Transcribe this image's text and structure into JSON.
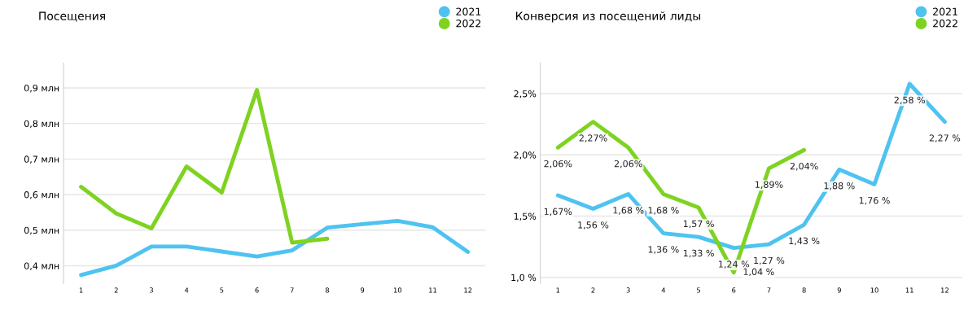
{
  "chart_data": [
    {
      "type": "line",
      "title": "Посещения",
      "categories": [
        "1",
        "2",
        "3",
        "4",
        "5",
        "6",
        "7",
        "8",
        "9",
        "10",
        "11",
        "12"
      ],
      "series": [
        {
          "name": "2021",
          "color": "#4fc3f0",
          "values": [
            0.374,
            0.4,
            0.454,
            0.454,
            0.44,
            0.426,
            0.443,
            0.507,
            0.517,
            0.526,
            0.508,
            0.439
          ]
        },
        {
          "name": "2022",
          "color": "#7ed321",
          "values": [
            0.622,
            0.547,
            0.505,
            0.679,
            0.606,
            0.894,
            0.465,
            0.476,
            null,
            null,
            null,
            null
          ]
        }
      ],
      "ylim": [
        0.35,
        0.97
      ],
      "yticks": [
        {
          "value": 0.4,
          "label": "0,4 млн"
        },
        {
          "value": 0.5,
          "label": "0,5 млн"
        },
        {
          "value": 0.6,
          "label": "0,6 млн"
        },
        {
          "value": 0.7,
          "label": "0,7 млн"
        },
        {
          "value": 0.8,
          "label": "0,8 млн"
        },
        {
          "value": 0.9,
          "label": "0,9 млн"
        }
      ],
      "grid": "y",
      "legend": "top right",
      "marker": "none"
    },
    {
      "type": "line",
      "title": "Конверсия из посещений лиды",
      "categories": [
        "1",
        "2",
        "3",
        "4",
        "5",
        "6",
        "7",
        "8",
        "9",
        "10",
        "11",
        "12"
      ],
      "series": [
        {
          "name": "2021",
          "color": "#4fc3f0",
          "values": [
            1.67,
            1.56,
            1.68,
            1.36,
            1.33,
            1.24,
            1.27,
            1.43,
            1.88,
            1.76,
            2.58,
            2.27
          ],
          "value_labels": [
            "1,67%",
            "1,56 %",
            "1,68 %",
            "1,36 %",
            "1,33 %",
            "1,24 %",
            "1,27 %",
            "1,43 %",
            "1,88 %",
            "1,76 %",
            "2,58 %",
            "2,27 %"
          ]
        },
        {
          "name": "2022",
          "color": "#7ed321",
          "values": [
            2.06,
            2.27,
            2.06,
            1.68,
            1.57,
            1.04,
            1.89,
            2.04,
            null,
            null,
            null,
            null
          ],
          "value_labels": [
            "2,06%",
            "2,27%",
            "2,06%",
            "1,68 %",
            "1,57 %",
            "1,04 %",
            "1,89%",
            "2,04%",
            null,
            null,
            null,
            null
          ]
        }
      ],
      "ylim": [
        0.95,
        2.75
      ],
      "yticks": [
        {
          "value": 1.0,
          "label": "1,0 %"
        },
        {
          "value": 1.5,
          "label": "1,5%"
        },
        {
          "value": 2.0,
          "label": "2,0%"
        },
        {
          "value": 2.5,
          "label": "2,5%"
        }
      ],
      "grid": "y",
      "legend": "top right",
      "marker": "none"
    }
  ]
}
